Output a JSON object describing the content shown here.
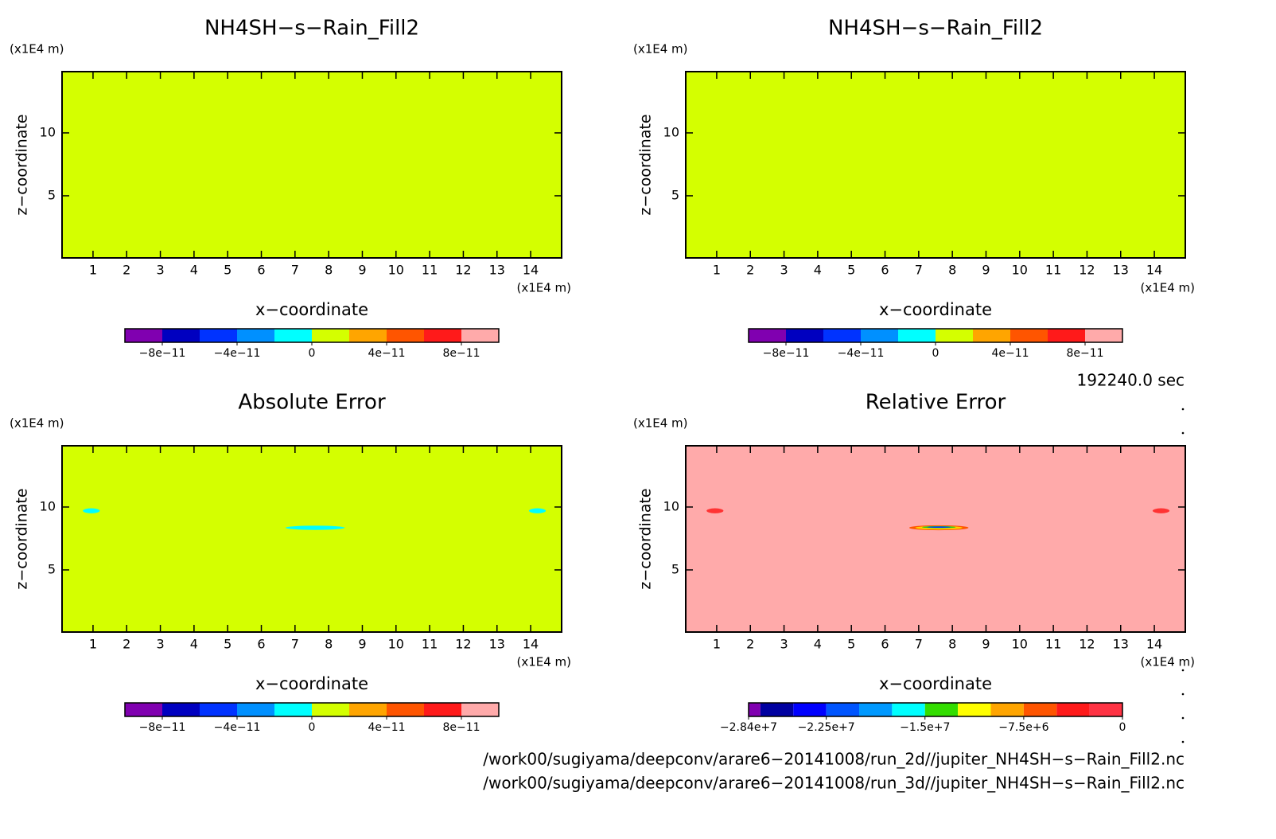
{
  "chart_data": [
    {
      "type": "filled-contour",
      "title": "NH4SH−s−Rain_Fill2",
      "x_label": "x−coordinate",
      "y_label": "z−coordinate",
      "x_unit": "(x1E4 m)",
      "y_unit": "(x1E4 m)",
      "xlim": [
        0.08,
        14.92
      ],
      "ylim": [
        0.06,
        14.87
      ],
      "xticks": [
        1,
        2,
        3,
        4,
        5,
        6,
        7,
        8,
        9,
        10,
        11,
        12,
        13,
        14
      ],
      "yticks": [
        5,
        10
      ],
      "fill": "#d4ff00",
      "features": [],
      "colorbar": {
        "levels": [
          -1e-10,
          -8e-11,
          -6e-11,
          -4e-11,
          -2e-11,
          0,
          2e-11,
          4e-11,
          6e-11,
          8e-11,
          1e-10
        ],
        "colors": [
          "#8000b0",
          "#0000c0",
          "#0033ff",
          "#0090ff",
          "#00ffff",
          "#d4ff00",
          "#ffa500",
          "#ff5500",
          "#ff1a1a",
          "#ffaaaa"
        ],
        "ticks": [
          {
            "value": -8e-11,
            "label": "−8e−11"
          },
          {
            "value": -4e-11,
            "label": "−4e−11"
          },
          0,
          {
            "value": 4e-11,
            "label": "4e−11"
          },
          {
            "value": 8e-11,
            "label": "8e−11"
          }
        ]
      }
    },
    {
      "type": "filled-contour",
      "title": "NH4SH−s−Rain_Fill2",
      "x_label": "x−coordinate",
      "y_label": "z−coordinate",
      "x_unit": "(x1E4 m)",
      "y_unit": "(x1E4 m)",
      "xlim": [
        0.08,
        14.92
      ],
      "ylim": [
        0.06,
        14.87
      ],
      "xticks": [
        1,
        2,
        3,
        4,
        5,
        6,
        7,
        8,
        9,
        10,
        11,
        12,
        13,
        14
      ],
      "yticks": [
        5,
        10
      ],
      "fill": "#d4ff00",
      "features": [],
      "colorbar": {
        "levels": [
          -1e-10,
          -8e-11,
          -6e-11,
          -4e-11,
          -2e-11,
          0,
          2e-11,
          4e-11,
          6e-11,
          8e-11,
          1e-10
        ],
        "colors": [
          "#8000b0",
          "#0000c0",
          "#0033ff",
          "#0090ff",
          "#00ffff",
          "#d4ff00",
          "#ffa500",
          "#ff5500",
          "#ff1a1a",
          "#ffaaaa"
        ],
        "ticks": [
          {
            "value": -8e-11,
            "label": "−8e−11"
          },
          {
            "value": -4e-11,
            "label": "−4e−11"
          },
          0,
          {
            "value": 4e-11,
            "label": "4e−11"
          },
          {
            "value": 8e-11,
            "label": "8e−11"
          }
        ]
      }
    },
    {
      "type": "filled-contour",
      "title": "Absolute Error",
      "x_label": "x−coordinate",
      "y_label": "z−coordinate",
      "x_unit": "(x1E4 m)",
      "y_unit": "(x1E4 m)",
      "xlim": [
        0.08,
        14.92
      ],
      "ylim": [
        0.06,
        14.87
      ],
      "xticks": [
        1,
        2,
        3,
        4,
        5,
        6,
        7,
        8,
        9,
        10,
        11,
        12,
        13,
        14
      ],
      "yticks": [
        5,
        10
      ],
      "fill": "#d4ff00",
      "features": [
        {
          "x": 0.95,
          "z": 9.7,
          "dx": 0.25,
          "dz": 0.2,
          "color": "#00ffff"
        },
        {
          "x": 14.2,
          "z": 9.7,
          "dx": 0.25,
          "dz": 0.2,
          "color": "#00ffff"
        },
        {
          "x": 7.6,
          "z": 8.35,
          "dx": 0.88,
          "dz": 0.17,
          "color": "#00ffff"
        }
      ],
      "colorbar": {
        "levels": [
          -1e-10,
          -8e-11,
          -6e-11,
          -4e-11,
          -2e-11,
          0,
          2e-11,
          4e-11,
          6e-11,
          8e-11,
          1e-10
        ],
        "colors": [
          "#8000b0",
          "#0000c0",
          "#0033ff",
          "#0090ff",
          "#00ffff",
          "#d4ff00",
          "#ffa500",
          "#ff5500",
          "#ff1a1a",
          "#ffaaaa"
        ],
        "ticks": [
          {
            "value": -8e-11,
            "label": "−8e−11"
          },
          {
            "value": -4e-11,
            "label": "−4e−11"
          },
          0,
          {
            "value": 4e-11,
            "label": "4e−11"
          },
          {
            "value": 8e-11,
            "label": "8e−11"
          }
        ]
      }
    },
    {
      "type": "filled-contour",
      "title": "Relative Error",
      "x_label": "x−coordinate",
      "y_label": "z−coordinate",
      "x_unit": "(x1E4 m)",
      "y_unit": "(x1E4 m)",
      "xlim": [
        0.08,
        14.92
      ],
      "ylim": [
        0.06,
        14.87
      ],
      "xticks": [
        1,
        2,
        3,
        4,
        5,
        6,
        7,
        8,
        9,
        10,
        11,
        12,
        13,
        14
      ],
      "yticks": [
        5,
        10
      ],
      "fill": "#ffaaaa",
      "features": [
        {
          "x": 0.95,
          "z": 9.7,
          "dx": 0.25,
          "dz": 0.2,
          "color": "#ff3333"
        },
        {
          "x": 14.2,
          "z": 9.7,
          "dx": 0.25,
          "dz": 0.2,
          "color": "#ff3333"
        },
        {
          "x": 7.6,
          "z": 8.35,
          "dx": 0.88,
          "dz": 0.2,
          "color": "#ff5500"
        },
        {
          "x": 7.6,
          "z": 8.35,
          "dx": 0.7,
          "dz": 0.14,
          "color": "#ffd000"
        },
        {
          "x": 7.6,
          "z": 8.4,
          "dx": 0.5,
          "dz": 0.08,
          "color": "#22cc22"
        },
        {
          "x": 7.6,
          "z": 8.4,
          "dx": 0.35,
          "dz": 0.05,
          "color": "#0033ff"
        }
      ],
      "colorbar": {
        "levels": [
          -28400000.0,
          -27500000.0,
          -25000000.0,
          -22500000.0,
          -20000000.0,
          -17500000.0,
          -15000000.0,
          -12500000.0,
          -10000000.0,
          -7500000.0,
          -5000000.0,
          -2500000.0,
          0
        ],
        "colors": [
          "#8000b0",
          "#0000a0",
          "#0000ff",
          "#0055ff",
          "#0099ff",
          "#00ffff",
          "#33dd00",
          "#ffff00",
          "#ffa500",
          "#ff5500",
          "#ff1a1a",
          "#ff3344"
        ],
        "ticks": [
          {
            "value": -28400000.0,
            "label": "−2.84e+7"
          },
          {
            "value": -22500000.0,
            "label": "−2.25e+7"
          },
          {
            "value": -15000000.0,
            "label": "−1.5e+7"
          },
          {
            "value": -7500000.0,
            "label": "−7.5e+6"
          },
          0
        ]
      }
    }
  ],
  "time_label": "192240.0 sec",
  "files": [
    "/work00/sugiyama/deepconv/arare6−20141008/run_2d//jupiter_NH4SH−s−Rain_Fill2.nc",
    "/work00/sugiyama/deepconv/arare6−20141008/run_3d//jupiter_NH4SH−s−Rain_Fill2.nc"
  ]
}
